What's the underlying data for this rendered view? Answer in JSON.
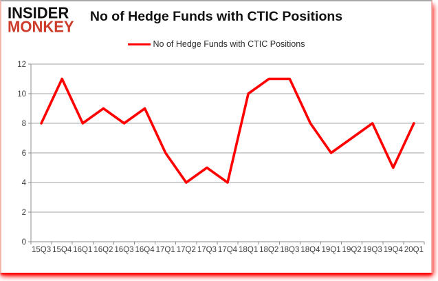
{
  "logo": {
    "line1": "INSIDER",
    "line2": "MONKEY"
  },
  "title": "No of Hedge Funds with CTIC Positions",
  "legend": {
    "label": "No of Hedge Funds with CTIC Positions"
  },
  "chart_data": {
    "type": "line",
    "title": "No of Hedge Funds with CTIC Positions",
    "categories": [
      "15Q3",
      "15Q4",
      "16Q1",
      "16Q2",
      "16Q3",
      "16Q4",
      "17Q1",
      "17Q2",
      "17Q3",
      "17Q4",
      "18Q1",
      "18Q2",
      "18Q3",
      "18Q4",
      "19Q1",
      "19Q2",
      "19Q3",
      "19Q4",
      "20Q1"
    ],
    "series": [
      {
        "name": "No of Hedge Funds with CTIC Positions",
        "color": "#ff0000",
        "values": [
          8,
          11,
          8,
          9,
          8,
          9,
          6,
          4,
          5,
          4,
          10,
          11,
          11,
          8,
          6,
          7,
          8,
          5,
          8
        ]
      }
    ],
    "xlabel": "",
    "ylabel": "",
    "ylim": [
      0,
      12
    ],
    "ytick_step": 2,
    "yticks": [
      0,
      2,
      4,
      6,
      8,
      10,
      12
    ],
    "grid": true,
    "legend_position": "top-center"
  },
  "colors": {
    "series_red": "#ff0000",
    "logo_black": "#111111",
    "logo_red": "#cd3b2a",
    "gridline": "#a3a3a3",
    "axis": "#8c8c8c",
    "axis_text": "#404040",
    "frame_shadow_red": "#ff0000",
    "frame_side_pink": "#f2b4ac",
    "frame_top_gray": "#a8a8a8"
  }
}
